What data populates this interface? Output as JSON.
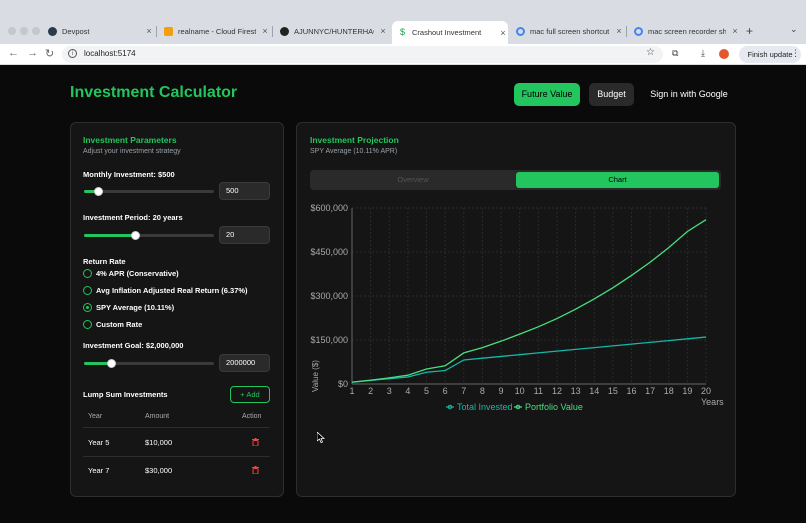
{
  "browser": {
    "tabs": [
      {
        "title": "Devpost",
        "icon": "devpost-icon"
      },
      {
        "title": "realname - Cloud Firestore",
        "icon": "firebase-icon"
      },
      {
        "title": "AJUNNYC/HUNTERHACKS",
        "icon": "github-icon"
      },
      {
        "title": "Crashout Investment",
        "icon": "dollar-icon",
        "active": true
      },
      {
        "title": "mac full screen shortcut",
        "icon": "google-icon"
      },
      {
        "title": "mac screen recorder shortcut",
        "icon": "google-icon"
      }
    ],
    "url": "localhost:5174",
    "finish_update": "Finish update"
  },
  "header": {
    "title": "Investment Calculator",
    "nav": {
      "future_value": "Future Value",
      "budget": "Budget",
      "sign_in": "Sign in with Google"
    }
  },
  "params": {
    "title": "Investment Parameters",
    "subtitle": "Adjust your investment strategy",
    "monthly": {
      "label": "Monthly Investment: $500",
      "value": "500",
      "slider": 0.11
    },
    "period": {
      "label": "Investment Period: 20 years",
      "value": "20",
      "slider": 0.39
    },
    "return_rate": {
      "label": "Return Rate",
      "options": [
        "4% APR (Conservative)",
        "Avg Inflation Adjusted Real Return (6.37%)",
        "SPY Average (10.11%)",
        "Custom Rate"
      ],
      "selected": 2
    },
    "goal": {
      "label": "Investment Goal: $2,000,000",
      "value": "2000000",
      "slider": 0.21
    },
    "lump": {
      "title": "Lump Sum Investments",
      "add_label": "Add",
      "headers": [
        "Year",
        "Amount",
        "Action"
      ],
      "rows": [
        {
          "year": "Year 5",
          "amount": "$10,000"
        },
        {
          "year": "Year 7",
          "amount": "$30,000"
        }
      ]
    }
  },
  "projection": {
    "title": "Investment Projection",
    "subtitle": "SPY Average (10.11% APR)",
    "tabs": {
      "overview": "Overview",
      "chart": "Chart"
    }
  },
  "chart_data": {
    "type": "line",
    "x": [
      1,
      2,
      3,
      4,
      5,
      6,
      7,
      8,
      9,
      10,
      11,
      12,
      13,
      14,
      15,
      16,
      17,
      18,
      19,
      20
    ],
    "xlabel": "Years",
    "ylabel": "Value ($)",
    "ylim": [
      0,
      600000
    ],
    "yticks": [
      "$0",
      "$150,000",
      "$300,000",
      "$450,000",
      "$600,000"
    ],
    "series": [
      {
        "name": "Total Invested",
        "color": "#14b8a6",
        "values": [
          6000,
          12000,
          18000,
          24000,
          40000,
          46000,
          82000,
          88000,
          94000,
          100000,
          106000,
          112000,
          118000,
          124000,
          130000,
          136000,
          142000,
          148000,
          154000,
          160000
        ]
      },
      {
        "name": "Portfolio Value",
        "color": "#4ade80",
        "values": [
          6300,
          13200,
          21000,
          30000,
          51000,
          62000,
          106000,
          124000,
          146000,
          170000,
          195000,
          223000,
          255000,
          290000,
          328000,
          370000,
          415000,
          465000,
          520000,
          560000
        ]
      }
    ],
    "legend_placement": "bottom",
    "grid": true
  }
}
